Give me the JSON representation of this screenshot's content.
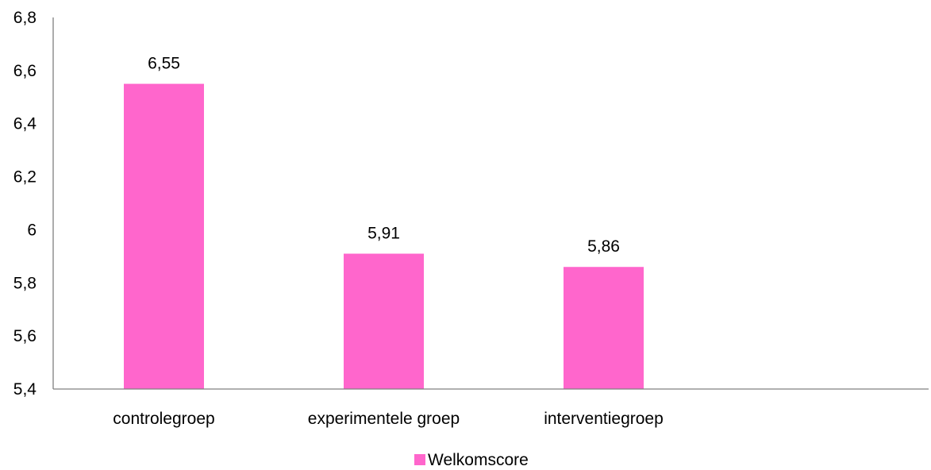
{
  "chart_data": {
    "type": "bar",
    "categories": [
      "controlegroep",
      "experimentele groep",
      "interventiegroep"
    ],
    "series": [
      {
        "name": "Welkomscore",
        "values": [
          6.55,
          5.91,
          5.86
        ],
        "data_labels": [
          "6,55",
          "5,91",
          "5,86"
        ],
        "color": "#FF66CC"
      }
    ],
    "ylim": [
      5.4,
      6.8
    ],
    "yticks": [
      5.4,
      5.6,
      5.8,
      6.0,
      6.2,
      6.4,
      6.6,
      6.8
    ],
    "ytick_labels": [
      "5,4",
      "5,6",
      "5,8",
      "6",
      "6,2",
      "6,4",
      "6,6",
      "6,8"
    ],
    "grid": false,
    "legend_position": "bottom",
    "axis_color": "#808080"
  }
}
